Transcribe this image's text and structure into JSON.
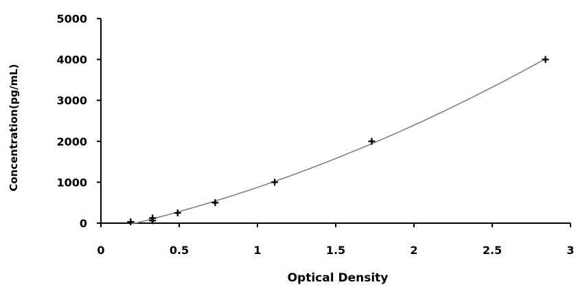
{
  "chart_data": {
    "type": "scatter",
    "title": "",
    "xlabel": "Optical Density",
    "ylabel": "Concentration(pg/mL)",
    "xlim": [
      0,
      3
    ],
    "ylim": [
      0,
      5000
    ],
    "x_ticks": [
      "0",
      "0.5",
      "1",
      "1.5",
      "2",
      "2.5",
      "3"
    ],
    "y_ticks": [
      "0",
      "1000",
      "2000",
      "3000",
      "4000",
      "5000"
    ],
    "grid": false,
    "legend": "none",
    "series": [
      {
        "points": [
          {
            "x": 0.19,
            "y": 31.25
          },
          {
            "x": 0.33,
            "y": 62.5
          },
          {
            "x": 0.33,
            "y": 125
          },
          {
            "x": 0.49,
            "y": 250
          },
          {
            "x": 0.73,
            "y": 500
          },
          {
            "x": 1.11,
            "y": 1000
          },
          {
            "x": 1.73,
            "y": 2000
          },
          {
            "x": 2.84,
            "y": 4000
          }
        ],
        "fit": "curve"
      }
    ],
    "colors": {
      "axis": "#000000",
      "marker": "#000000",
      "curve": "#808080"
    }
  }
}
